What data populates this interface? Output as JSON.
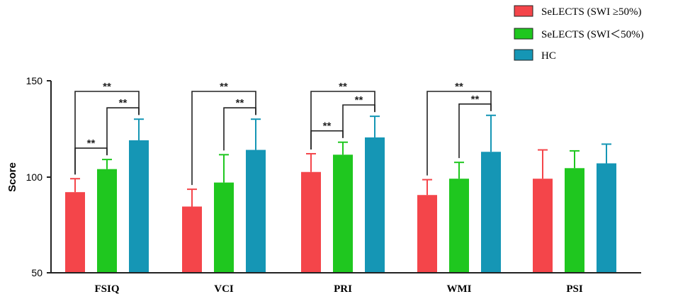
{
  "chart_data": {
    "type": "bar",
    "title": "",
    "xlabel": "",
    "ylabel": "Score",
    "ylim": [
      50,
      150
    ],
    "yticks": [
      "50",
      "100",
      "150"
    ],
    "categories": [
      "FSIQ",
      "VCI",
      "PRI",
      "WMI",
      "PSI"
    ],
    "series": [
      {
        "name": "SeLECTS (SWI ≥50%)",
        "color": "#f4454a",
        "values": [
          92,
          84.5,
          102.5,
          90.5,
          99
        ],
        "errors": [
          7,
          9,
          9.5,
          8,
          15
        ]
      },
      {
        "name": "SeLECTS (SWI＜50%)",
        "color": "#1fc71f",
        "values": [
          104,
          97,
          111.5,
          99,
          104.5
        ],
        "errors": [
          5,
          14.5,
          6.5,
          8.5,
          9
        ]
      },
      {
        "name": "HC",
        "color": "#1596b5",
        "values": [
          119,
          114,
          120.5,
          113,
          107
        ],
        "errors": [
          11,
          16,
          11,
          19,
          10
        ]
      }
    ],
    "significance": [
      {
        "category": 0,
        "from": 0,
        "to": 2,
        "label": "**"
      },
      {
        "category": 0,
        "from": 0,
        "to": 1,
        "label": "**"
      },
      {
        "category": 0,
        "from": 1,
        "to": 2,
        "label": "**"
      },
      {
        "category": 1,
        "from": 0,
        "to": 2,
        "label": "**"
      },
      {
        "category": 1,
        "from": 1,
        "to": 2,
        "label": "**"
      },
      {
        "category": 2,
        "from": 0,
        "to": 2,
        "label": "**"
      },
      {
        "category": 2,
        "from": 0,
        "to": 1,
        "label": "**"
      },
      {
        "category": 2,
        "from": 1,
        "to": 2,
        "label": "**"
      },
      {
        "category": 3,
        "from": 0,
        "to": 2,
        "label": "**"
      },
      {
        "category": 3,
        "from": 1,
        "to": 2,
        "label": "**"
      }
    ],
    "legend_position": "top-right"
  }
}
